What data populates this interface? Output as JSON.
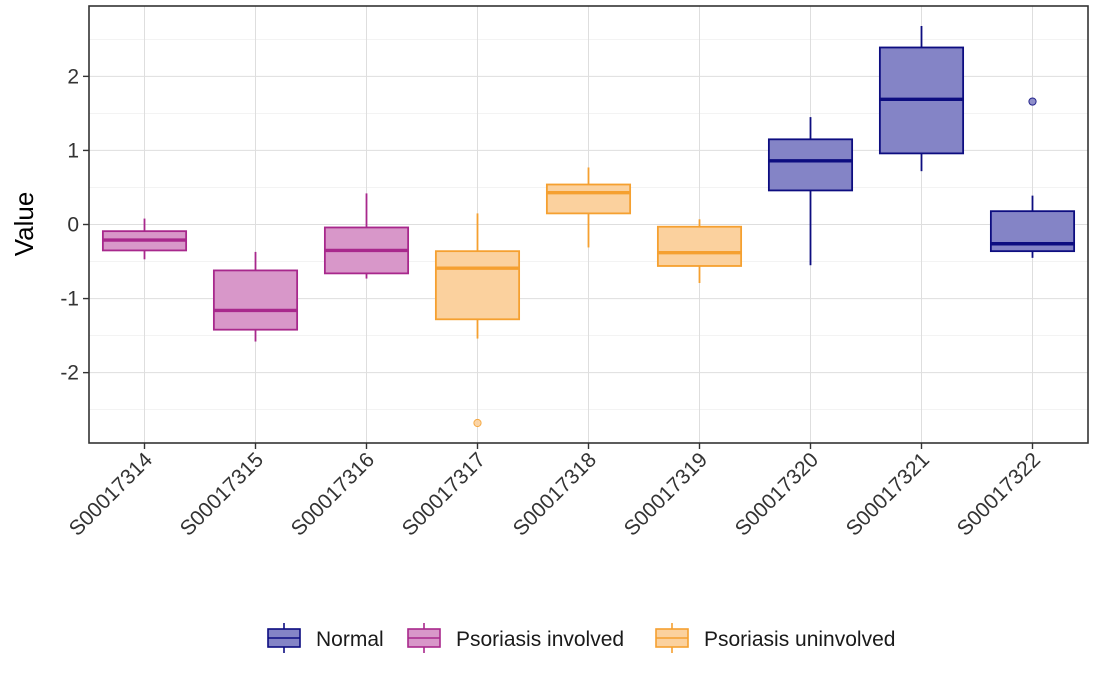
{
  "chart_data": {
    "type": "boxplot",
    "title": "",
    "xlabel": "",
    "ylabel": "Value",
    "ylim": [
      -2.95,
      2.95
    ],
    "y_ticks": [
      -2,
      -1,
      0,
      1,
      2
    ],
    "y_tick_labels": [
      "-2",
      "-1",
      "0",
      "1",
      "2"
    ],
    "grid": true,
    "legend_position": "bottom",
    "groups": [
      {
        "name": "Normal",
        "stroke": "#0d0d80",
        "fill": "#8484c6"
      },
      {
        "name": "Psoriasis involved",
        "stroke": "#a8288c",
        "fill": "#d897c9"
      },
      {
        "name": "Psoriasis uninvolved",
        "stroke": "#f5a030",
        "fill": "#fbd19e"
      }
    ],
    "categories": [
      "S00017314",
      "S00017315",
      "S00017316",
      "S00017317",
      "S00017318",
      "S00017319",
      "S00017320",
      "S00017321",
      "S00017322"
    ],
    "boxes": [
      {
        "group": 1,
        "lower_whisker": -0.47,
        "q1": -0.35,
        "median": -0.21,
        "q3": -0.09,
        "upper_whisker": 0.08,
        "outliers": []
      },
      {
        "group": 1,
        "lower_whisker": -1.58,
        "q1": -1.42,
        "median": -1.16,
        "q3": -0.62,
        "upper_whisker": -0.37,
        "outliers": []
      },
      {
        "group": 1,
        "lower_whisker": -0.73,
        "q1": -0.66,
        "median": -0.35,
        "q3": -0.04,
        "upper_whisker": 0.42,
        "outliers": []
      },
      {
        "group": 2,
        "lower_whisker": -1.54,
        "q1": -1.28,
        "median": -0.59,
        "q3": -0.36,
        "upper_whisker": 0.15,
        "outliers": [
          -2.68
        ]
      },
      {
        "group": 2,
        "lower_whisker": -0.31,
        "q1": 0.15,
        "median": 0.43,
        "q3": 0.54,
        "upper_whisker": 0.77,
        "outliers": []
      },
      {
        "group": 2,
        "lower_whisker": -0.79,
        "q1": -0.56,
        "median": -0.38,
        "q3": -0.03,
        "upper_whisker": 0.07,
        "outliers": []
      },
      {
        "group": 0,
        "lower_whisker": -0.55,
        "q1": 0.46,
        "median": 0.86,
        "q3": 1.15,
        "upper_whisker": 1.45,
        "outliers": []
      },
      {
        "group": 0,
        "lower_whisker": 0.72,
        "q1": 0.96,
        "median": 1.69,
        "q3": 2.39,
        "upper_whisker": 2.68,
        "outliers": []
      },
      {
        "group": 0,
        "lower_whisker": -0.45,
        "q1": -0.36,
        "median": -0.26,
        "q3": 0.18,
        "upper_whisker": 0.39,
        "outliers": [
          1.66
        ]
      }
    ]
  }
}
